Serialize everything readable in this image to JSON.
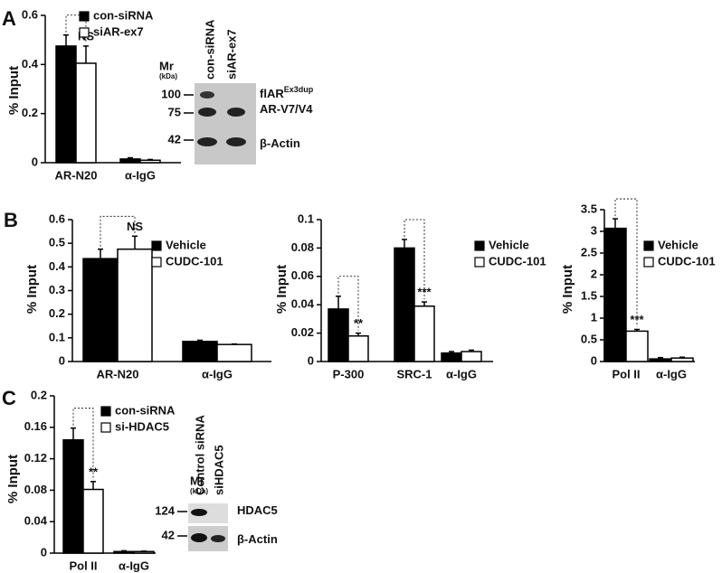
{
  "chart_data": [
    {
      "type": "bar",
      "panel": "A",
      "ylabel": "% Input",
      "categories": [
        "AR-N20",
        "α-IgG"
      ],
      "series": [
        {
          "name": "con-siRNA",
          "color": "#000000",
          "values": [
            0.475,
            0.015
          ],
          "errors": [
            0.045,
            0.005
          ]
        },
        {
          "name": "siAR-ex7",
          "color": "#ffffff",
          "values": [
            0.405,
            0.01
          ],
          "errors": [
            0.07,
            0.003
          ]
        }
      ],
      "significance": [
        "NS",
        null
      ],
      "ylim": [
        0,
        0.6
      ],
      "yticks": [
        0,
        0.2,
        0.4,
        0.6
      ]
    },
    {
      "type": "bar",
      "panel": "B",
      "ylabel": "% Input",
      "categories": [
        "AR-N20",
        "α-IgG"
      ],
      "series": [
        {
          "name": "Vehicle",
          "color": "#000000",
          "values": [
            0.435,
            0.085
          ],
          "errors": [
            0.04,
            0.005
          ]
        },
        {
          "name": "CUDC-101",
          "color": "#ffffff",
          "values": [
            0.475,
            0.072
          ],
          "errors": [
            0.055,
            0.002
          ]
        }
      ],
      "significance": [
        "NS",
        null
      ],
      "ylim": [
        0,
        0.6
      ],
      "yticks": [
        0,
        0.1,
        0.2,
        0.3,
        0.4,
        0.5,
        0.6
      ]
    },
    {
      "type": "bar",
      "ylabel": "% Input",
      "categories": [
        "P-300",
        "SRC-1",
        "α-IgG"
      ],
      "series": [
        {
          "name": "Vehicle",
          "color": "#000000",
          "values": [
            0.037,
            0.08,
            0.006
          ],
          "errors": [
            0.009,
            0.006,
            0.001
          ]
        },
        {
          "name": "CUDC-101",
          "color": "#ffffff",
          "values": [
            0.018,
            0.039,
            0.007
          ],
          "errors": [
            0.002,
            0.003,
            0.001
          ]
        }
      ],
      "significance": [
        "**",
        "***",
        null
      ],
      "ylim": [
        0,
        0.1
      ],
      "yticks": [
        0,
        0.02,
        0.04,
        0.06,
        0.08,
        0.1
      ]
    },
    {
      "type": "bar",
      "ylabel": "% Input",
      "categories": [
        "Pol II",
        "α-IgG"
      ],
      "series": [
        {
          "name": "Vehicle",
          "color": "#000000",
          "values": [
            3.07,
            0.06
          ],
          "errors": [
            0.22,
            0.03
          ]
        },
        {
          "name": "CUDC-101",
          "color": "#ffffff",
          "values": [
            0.7,
            0.08
          ],
          "errors": [
            0.04,
            0.02
          ]
        }
      ],
      "significance": [
        "***",
        null
      ],
      "ylim": [
        0,
        3.5
      ],
      "yticks": [
        0,
        0.5,
        1,
        1.5,
        2,
        2.5,
        3,
        3.5
      ]
    },
    {
      "type": "bar",
      "panel": "C",
      "ylabel": "% Input",
      "categories": [
        "Pol II",
        "α-IgG"
      ],
      "series": [
        {
          "name": "con-siRNA",
          "color": "#000000",
          "values": [
            0.144,
            0.002
          ],
          "errors": [
            0.015,
            0.001
          ]
        },
        {
          "name": "si-HDAC5",
          "color": "#ffffff",
          "values": [
            0.081,
            0.002
          ],
          "errors": [
            0.01,
            0.0005
          ]
        }
      ],
      "significance": [
        "**",
        null
      ],
      "ylim": [
        0,
        0.2
      ],
      "yticks": [
        0,
        0.04,
        0.08,
        0.12,
        0.16,
        0.2
      ]
    }
  ],
  "blots": [
    {
      "mr": "Mr",
      "unit": "(kDa)",
      "lanes": [
        "con-siRNA",
        "siAR-ex7"
      ],
      "markers": [
        100,
        75,
        42
      ],
      "bands": [
        {
          "text": "flAR",
          "sup": "Ex3dup"
        },
        {
          "text": "AR-V7/V4"
        },
        {
          "text": "β-Actin"
        }
      ]
    },
    {
      "mr": "Mr",
      "unit": "(kDa)",
      "lanes": [
        "Control siRNA",
        "siHDAC5"
      ],
      "markers": [
        124,
        42
      ],
      "bands": [
        {
          "text": "HDAC5"
        },
        {
          "text": "β-Actin"
        }
      ]
    }
  ]
}
